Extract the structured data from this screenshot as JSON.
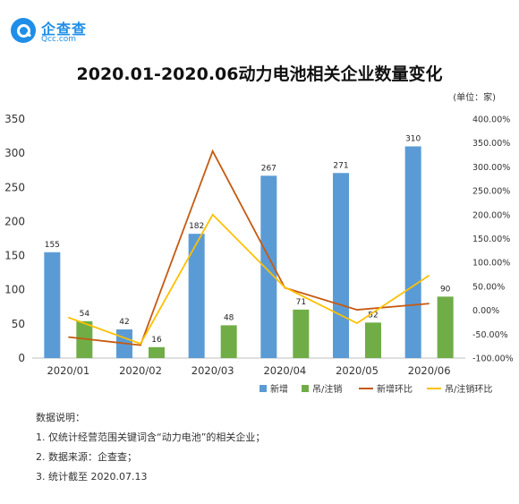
{
  "brand": {
    "name_cn": "企查查",
    "name_en": "Qcc.com"
  },
  "title": "2020.01-2020.06动力电池相关企业数量变化",
  "unit": "(单位：家)",
  "chart_data": {
    "type": "bar",
    "categories": [
      "2020/01",
      "2020/02",
      "2020/03",
      "2020/04",
      "2020/05",
      "2020/06"
    ],
    "series": [
      {
        "name": "新增",
        "kind": "bar",
        "axis": "left",
        "color": "#5b9bd5",
        "values": [
          155,
          42,
          182,
          267,
          271,
          310
        ]
      },
      {
        "name": "吊/注销",
        "kind": "bar",
        "axis": "left",
        "color": "#70ad47",
        "values": [
          54,
          16,
          48,
          71,
          52,
          90
        ]
      },
      {
        "name": "新增环比",
        "kind": "line",
        "axis": "right",
        "color": "#c55a11",
        "values": [
          -0.56,
          -0.73,
          3.33,
          0.47,
          0.01,
          0.14
        ]
      },
      {
        "name": "吊/注销环比",
        "kind": "line",
        "axis": "right",
        "color": "#ffc000",
        "values": [
          -0.15,
          -0.7,
          2.0,
          0.48,
          -0.27,
          0.73
        ]
      }
    ],
    "y_left": {
      "min": 0,
      "max": 350,
      "ticks": [
        "0",
        "50",
        "100",
        "150",
        "200",
        "250",
        "300",
        "350"
      ]
    },
    "y_right": {
      "min": -1.0,
      "max": 4.0,
      "ticks": [
        "-100.00%",
        "-50.00%",
        "0.00%",
        "50.00%",
        "100.00%",
        "150.00%",
        "200.00%",
        "250.00%",
        "300.00%",
        "350.00%",
        "400.00%"
      ]
    },
    "grid": false,
    "legend_position": "bottom-right"
  },
  "notes": {
    "heading": "数据说明：",
    "items": [
      "1. 仅统计经营范围关键词含“动力电池”的相关企业；",
      "2. 数据来源：企查查；",
      "3. 统计截至 2020.07.13"
    ]
  }
}
